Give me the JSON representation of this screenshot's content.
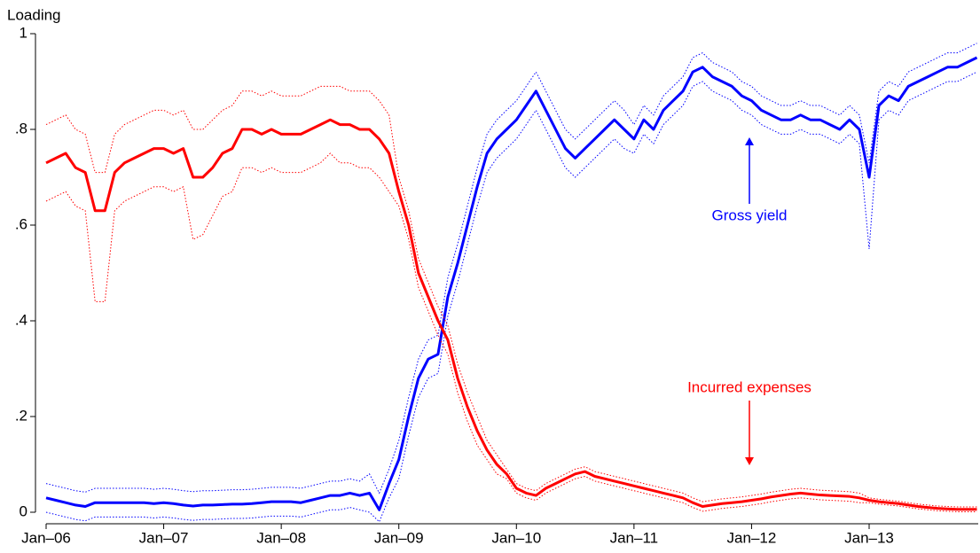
{
  "chart_data": {
    "type": "line",
    "ylabel": "Loading",
    "categories": [
      "Jan–06",
      null,
      null,
      null,
      null,
      null,
      null,
      null,
      null,
      null,
      null,
      null,
      "Jan–07",
      null,
      null,
      null,
      null,
      null,
      null,
      null,
      null,
      null,
      null,
      null,
      "Jan–08",
      null,
      null,
      null,
      null,
      null,
      null,
      null,
      null,
      null,
      null,
      null,
      "Jan–09",
      null,
      null,
      null,
      null,
      null,
      null,
      null,
      null,
      null,
      null,
      null,
      "Jan–10",
      null,
      null,
      null,
      null,
      null,
      null,
      null,
      null,
      null,
      null,
      null,
      "Jan–11",
      null,
      null,
      null,
      null,
      null,
      null,
      null,
      null,
      null,
      null,
      null,
      "Jan–12",
      null,
      null,
      null,
      null,
      null,
      null,
      null,
      null,
      null,
      null,
      null,
      "Jan–13",
      null,
      null,
      null,
      null,
      null,
      null,
      null,
      null,
      null,
      null,
      null
    ],
    "ylim": [
      0,
      1
    ],
    "yticks": [
      0,
      {
        "value": 0.2,
        "label": ".2"
      },
      {
        "value": 0.4,
        "label": ".4"
      },
      {
        "value": 0.6,
        "label": ".6"
      },
      {
        "value": 0.8,
        "label": ".8"
      },
      1
    ],
    "annotations": [
      {
        "text": "Gross yield",
        "color": "#0000ff"
      },
      {
        "text": "Incurred expenses",
        "color": "#ff0000"
      }
    ],
    "series": [
      {
        "color": "#0000ff",
        "values": [
          0.03,
          0.025,
          0.02,
          0.015,
          0.012,
          0.02,
          0.02,
          0.02,
          0.02,
          0.02,
          0.02,
          0.018,
          0.02,
          0.018,
          0.015,
          0.013,
          0.015,
          0.015,
          0.016,
          0.017,
          0.017,
          0.018,
          0.02,
          0.022,
          0.022,
          0.022,
          0.02,
          0.025,
          0.03,
          0.035,
          0.035,
          0.04,
          0.035,
          0.04,
          0.005,
          0.06,
          0.11,
          0.2,
          0.28,
          0.32,
          0.33,
          0.45,
          0.52,
          0.6,
          0.68,
          0.75,
          0.78,
          0.8,
          0.82,
          0.85,
          0.88,
          0.84,
          0.8,
          0.76,
          0.74,
          0.76,
          0.78,
          0.8,
          0.82,
          0.8,
          0.78,
          0.82,
          0.8,
          0.84,
          0.86,
          0.88,
          0.92,
          0.93,
          0.91,
          0.9,
          0.89,
          0.87,
          0.86,
          0.84,
          0.83,
          0.82,
          0.82,
          0.83,
          0.82,
          0.82,
          0.81,
          0.8,
          0.82,
          0.8,
          0.7,
          0.85,
          0.87,
          0.86,
          0.89,
          0.9,
          0.91,
          0.92,
          0.93,
          0.93,
          0.94,
          0.95
        ],
        "upper": [
          0.06,
          0.055,
          0.05,
          0.045,
          0.042,
          0.05,
          0.05,
          0.05,
          0.05,
          0.05,
          0.05,
          0.048,
          0.05,
          0.048,
          0.045,
          0.043,
          0.045,
          0.045,
          0.046,
          0.047,
          0.047,
          0.048,
          0.05,
          0.052,
          0.052,
          0.052,
          0.05,
          0.055,
          0.06,
          0.065,
          0.065,
          0.07,
          0.065,
          0.08,
          0.04,
          0.09,
          0.15,
          0.24,
          0.32,
          0.36,
          0.37,
          0.49,
          0.56,
          0.64,
          0.72,
          0.79,
          0.82,
          0.84,
          0.86,
          0.89,
          0.92,
          0.88,
          0.84,
          0.8,
          0.78,
          0.8,
          0.82,
          0.84,
          0.86,
          0.84,
          0.81,
          0.85,
          0.83,
          0.87,
          0.89,
          0.91,
          0.95,
          0.96,
          0.94,
          0.93,
          0.92,
          0.9,
          0.89,
          0.87,
          0.86,
          0.85,
          0.85,
          0.86,
          0.85,
          0.85,
          0.84,
          0.83,
          0.85,
          0.83,
          0.73,
          0.88,
          0.9,
          0.89,
          0.92,
          0.93,
          0.94,
          0.95,
          0.96,
          0.96,
          0.97,
          0.98
        ],
        "lower": [
          0,
          -0.005,
          -0.01,
          -0.015,
          -0.018,
          -0.01,
          -0.01,
          -0.01,
          -0.01,
          -0.01,
          -0.01,
          -0.012,
          -0.01,
          -0.012,
          -0.015,
          -0.017,
          -0.015,
          -0.015,
          -0.014,
          -0.013,
          -0.013,
          -0.012,
          -0.01,
          -0.008,
          -0.008,
          -0.008,
          -0.01,
          -0.005,
          0,
          0.005,
          0.005,
          0.01,
          0.005,
          0,
          -0.02,
          0.03,
          0.07,
          0.16,
          0.24,
          0.28,
          0.29,
          0.41,
          0.48,
          0.56,
          0.64,
          0.71,
          0.74,
          0.76,
          0.78,
          0.81,
          0.84,
          0.8,
          0.76,
          0.72,
          0.7,
          0.72,
          0.74,
          0.76,
          0.78,
          0.76,
          0.75,
          0.79,
          0.77,
          0.81,
          0.83,
          0.85,
          0.89,
          0.9,
          0.88,
          0.87,
          0.86,
          0.84,
          0.83,
          0.81,
          0.8,
          0.79,
          0.79,
          0.8,
          0.79,
          0.79,
          0.78,
          0.77,
          0.79,
          0.77,
          0.55,
          0.82,
          0.84,
          0.83,
          0.86,
          0.87,
          0.88,
          0.89,
          0.9,
          0.9,
          0.91,
          0.92
        ]
      },
      {
        "color": "#ff0000",
        "values": [
          0.73,
          0.74,
          0.75,
          0.72,
          0.71,
          0.63,
          0.63,
          0.71,
          0.73,
          0.74,
          0.75,
          0.76,
          0.76,
          0.75,
          0.76,
          0.7,
          0.7,
          0.72,
          0.75,
          0.76,
          0.8,
          0.8,
          0.79,
          0.8,
          0.79,
          0.79,
          0.79,
          0.8,
          0.81,
          0.82,
          0.81,
          0.81,
          0.8,
          0.8,
          0.78,
          0.75,
          0.67,
          0.6,
          0.5,
          0.45,
          0.4,
          0.36,
          0.28,
          0.22,
          0.17,
          0.13,
          0.1,
          0.08,
          0.05,
          0.04,
          0.035,
          0.05,
          0.06,
          0.07,
          0.08,
          0.085,
          0.075,
          0.07,
          0.065,
          0.06,
          0.055,
          0.05,
          0.045,
          0.04,
          0.035,
          0.03,
          0.02,
          0.012,
          0.015,
          0.018,
          0.02,
          0.022,
          0.025,
          0.028,
          0.032,
          0.035,
          0.038,
          0.04,
          0.038,
          0.036,
          0.035,
          0.034,
          0.033,
          0.03,
          0.025,
          0.022,
          0.02,
          0.018,
          0.015,
          0.012,
          0.01,
          0.008,
          0.007,
          0.006,
          0.006,
          0.006
        ],
        "upper": [
          0.81,
          0.82,
          0.83,
          0.8,
          0.79,
          0.71,
          0.71,
          0.79,
          0.81,
          0.82,
          0.83,
          0.84,
          0.84,
          0.83,
          0.84,
          0.8,
          0.8,
          0.82,
          0.84,
          0.85,
          0.88,
          0.88,
          0.87,
          0.88,
          0.87,
          0.87,
          0.87,
          0.88,
          0.89,
          0.89,
          0.89,
          0.88,
          0.88,
          0.88,
          0.86,
          0.83,
          0.7,
          0.63,
          0.53,
          0.48,
          0.43,
          0.39,
          0.31,
          0.25,
          0.2,
          0.15,
          0.12,
          0.09,
          0.06,
          0.05,
          0.045,
          0.06,
          0.07,
          0.08,
          0.09,
          0.095,
          0.085,
          0.08,
          0.075,
          0.07,
          0.065,
          0.06,
          0.055,
          0.05,
          0.045,
          0.04,
          0.03,
          0.022,
          0.025,
          0.028,
          0.03,
          0.032,
          0.035,
          0.038,
          0.042,
          0.045,
          0.048,
          0.05,
          0.048,
          0.046,
          0.045,
          0.044,
          0.043,
          0.04,
          0.03,
          0.027,
          0.025,
          0.023,
          0.02,
          0.017,
          0.015,
          0.013,
          0.012,
          0.011,
          0.011,
          0.011
        ],
        "lower": [
          0.65,
          0.66,
          0.67,
          0.64,
          0.63,
          0.44,
          0.44,
          0.63,
          0.65,
          0.66,
          0.67,
          0.68,
          0.68,
          0.67,
          0.68,
          0.57,
          0.58,
          0.62,
          0.66,
          0.67,
          0.72,
          0.72,
          0.71,
          0.72,
          0.71,
          0.71,
          0.71,
          0.72,
          0.73,
          0.75,
          0.73,
          0.73,
          0.72,
          0.72,
          0.7,
          0.67,
          0.64,
          0.57,
          0.47,
          0.42,
          0.37,
          0.33,
          0.25,
          0.19,
          0.14,
          0.11,
          0.08,
          0.07,
          0.04,
          0.03,
          0.025,
          0.04,
          0.05,
          0.06,
          0.07,
          0.075,
          0.065,
          0.06,
          0.055,
          0.05,
          0.045,
          0.04,
          0.035,
          0.03,
          0.025,
          0.02,
          0.01,
          0.002,
          0.005,
          0.008,
          0.01,
          0.012,
          0.015,
          0.018,
          0.022,
          0.025,
          0.028,
          0.03,
          0.028,
          0.026,
          0.025,
          0.024,
          0.023,
          0.02,
          0.02,
          0.017,
          0.015,
          0.013,
          0.01,
          0.007,
          0.005,
          0.003,
          0.002,
          0.001,
          0.001,
          0.001
        ]
      }
    ]
  }
}
